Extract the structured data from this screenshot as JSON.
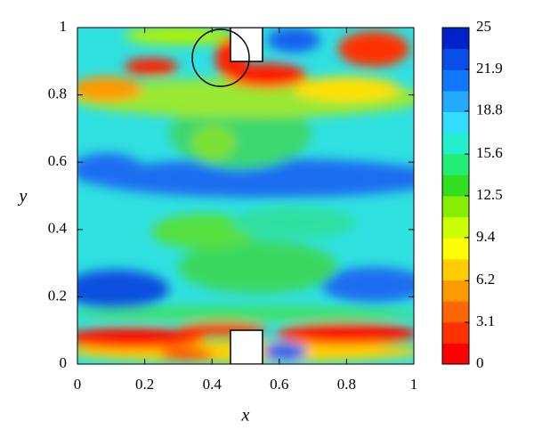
{
  "chart_data": {
    "type": "contour",
    "xlabel": "x",
    "ylabel": "y",
    "xlim": [
      0,
      1
    ],
    "ylim": [
      0,
      1
    ],
    "xticks": [
      0,
      0.2,
      0.4,
      0.6,
      0.8,
      1
    ],
    "yticks": [
      0,
      0.2,
      0.4,
      0.6,
      0.8,
      1
    ],
    "colorbar": {
      "lim": [
        0,
        25
      ],
      "ticks": [
        0,
        3.1,
        6.2,
        9.4,
        12.5,
        15.6,
        18.8,
        21.9,
        25
      ],
      "colors": [
        "#ff0000",
        "#ff3300",
        "#ff6600",
        "#ff9900",
        "#ffcc00",
        "#ffff00",
        "#ccff00",
        "#88ee00",
        "#33dd22",
        "#22ee77",
        "#22eecc",
        "#33ddff",
        "#22aaff",
        "#1177ff",
        "#0a4de8",
        "#0022cc"
      ]
    }
  }
}
